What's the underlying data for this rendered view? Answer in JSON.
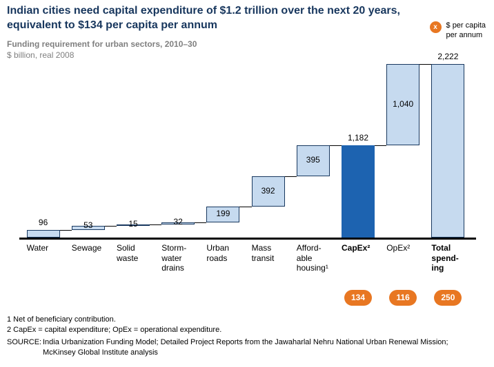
{
  "title": "Indian cities need capital expenditure of $1.2 trillion over the next 20 years,\nequivalent to $134 per capita per annum",
  "subtitle": "Funding requirement for urban sectors, 2010–30",
  "unit_label": "$ billion, real 2008",
  "legend": {
    "symbol": "x",
    "label": "$ per capita\nper annum"
  },
  "chart_data": {
    "type": "waterfall-bar",
    "title": "Funding requirement for urban sectors, 2010–30",
    "ylabel": "$ billion, real 2008",
    "ylim": [
      0,
      2222
    ],
    "colors": {
      "light_fill": "#C6DAEF",
      "dark_fill": "#1D63B0",
      "bar_border": "#17375E",
      "badge": "#E87722",
      "title": "#17365D"
    },
    "bars": [
      {
        "category": "Water",
        "value": 96,
        "display": "96",
        "start": 0,
        "end": 96,
        "fill": "light",
        "bold": false,
        "label_pos": "above"
      },
      {
        "category": "Sewage",
        "value": 53,
        "display": "53",
        "start": 96,
        "end": 149,
        "fill": "light",
        "bold": false,
        "label_pos": "edge"
      },
      {
        "category": "Solid\nwaste",
        "value": 15,
        "display": "15",
        "start": 149,
        "end": 164,
        "fill": "light",
        "bold": false,
        "label_pos": "edge"
      },
      {
        "category": "Storm-\nwater\ndrains",
        "value": 32,
        "display": "32",
        "start": 164,
        "end": 196,
        "fill": "light",
        "bold": false,
        "label_pos": "edge"
      },
      {
        "category": "Urban\nroads",
        "value": 199,
        "display": "199",
        "start": 196,
        "end": 395,
        "fill": "light",
        "bold": false,
        "label_pos": "inside"
      },
      {
        "category": "Mass\ntransit",
        "value": 392,
        "display": "392",
        "start": 395,
        "end": 787,
        "fill": "light",
        "bold": false,
        "label_pos": "inside"
      },
      {
        "category": "Afford-\nable\nhousing¹",
        "value": 395,
        "display": "395",
        "start": 787,
        "end": 1182,
        "fill": "light",
        "bold": false,
        "label_pos": "inside"
      },
      {
        "category": "CapEx²",
        "value": 1182,
        "display": "1,182",
        "start": 0,
        "end": 1182,
        "fill": "dark",
        "bold": true,
        "label_pos": "above",
        "badge": "134"
      },
      {
        "category": "OpEx²",
        "value": 1040,
        "display": "1,040",
        "start": 1182,
        "end": 2222,
        "fill": "light",
        "bold": false,
        "label_pos": "inside",
        "badge": "116"
      },
      {
        "category": "Total\nspend-\ning",
        "value": 2222,
        "display": "2,222",
        "start": 0,
        "end": 2222,
        "fill": "light",
        "bold": true,
        "label_pos": "above",
        "badge": "250"
      }
    ],
    "connectors": [
      {
        "from": 0,
        "to": 1,
        "level": 96
      },
      {
        "from": 1,
        "to": 2,
        "level": 149
      },
      {
        "from": 2,
        "to": 3,
        "level": 164
      },
      {
        "from": 3,
        "to": 4,
        "level": 196
      },
      {
        "from": 4,
        "to": 5,
        "level": 395
      },
      {
        "from": 5,
        "to": 6,
        "level": 787
      },
      {
        "from": 6,
        "to": 7,
        "level": 1182
      },
      {
        "from": 7,
        "to": 8,
        "level": 1182
      },
      {
        "from": 8,
        "to": 9,
        "level": 2222
      }
    ]
  },
  "footnotes": [
    "1 Net of beneficiary contribution.",
    "2 CapEx = capital expenditure; OpEx = operational expenditure."
  ],
  "source": {
    "label": "SOURCE:",
    "text": "India Urbanization Funding Model; Detailed Project Reports from the Jawaharlal Nehru National Urban Renewal Mission; McKinsey Global Institute analysis"
  }
}
